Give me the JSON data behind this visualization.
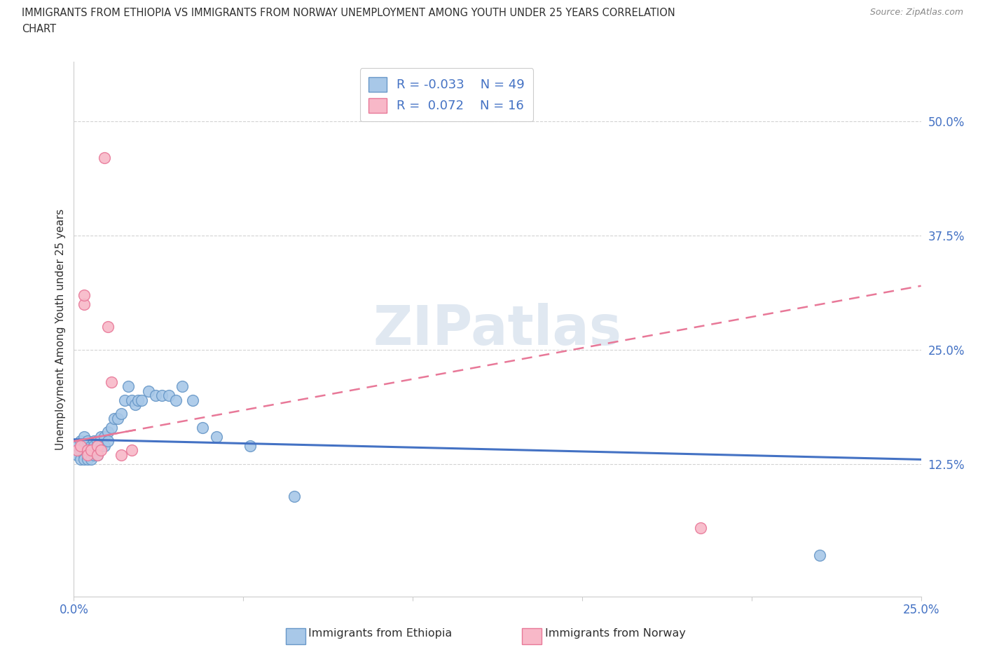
{
  "title_line1": "IMMIGRANTS FROM ETHIOPIA VS IMMIGRANTS FROM NORWAY UNEMPLOYMENT AMONG YOUTH UNDER 25 YEARS CORRELATION",
  "title_line2": "CHART",
  "source": "Source: ZipAtlas.com",
  "ylabel": "Unemployment Among Youth under 25 years",
  "xlim": [
    0.0,
    0.25
  ],
  "ylim": [
    -0.02,
    0.565
  ],
  "ytick_right": [
    0.125,
    0.25,
    0.375,
    0.5
  ],
  "ytick_right_labels": [
    "12.5%",
    "25.0%",
    "37.5%",
    "50.0%"
  ],
  "background_color": "#ffffff",
  "grid_color": "#c8c8c8",
  "watermark": "ZIPatlas",
  "watermark_color": "#ccd9e8",
  "ethiopia_color": "#a8c8e8",
  "norway_color": "#f8b8c8",
  "ethiopia_edge": "#6898c8",
  "norway_edge": "#e87898",
  "trend_ethiopia_color": "#4472c4",
  "trend_norway_color": "#e87898",
  "legend_R_ethiopia": "R = -0.033",
  "legend_N_ethiopia": "N = 49",
  "legend_R_norway": "R =  0.072",
  "legend_N_norway": "N = 16",
  "ethiopia_x": [
    0.001,
    0.001,
    0.002,
    0.002,
    0.002,
    0.003,
    0.003,
    0.003,
    0.003,
    0.004,
    0.004,
    0.004,
    0.005,
    0.005,
    0.005,
    0.006,
    0.006,
    0.006,
    0.007,
    0.007,
    0.007,
    0.008,
    0.008,
    0.009,
    0.009,
    0.01,
    0.01,
    0.011,
    0.012,
    0.013,
    0.014,
    0.015,
    0.016,
    0.017,
    0.018,
    0.019,
    0.02,
    0.022,
    0.024,
    0.026,
    0.028,
    0.03,
    0.032,
    0.035,
    0.038,
    0.042,
    0.052,
    0.065,
    0.22
  ],
  "ethiopia_y": [
    0.145,
    0.135,
    0.15,
    0.14,
    0.13,
    0.155,
    0.145,
    0.135,
    0.13,
    0.15,
    0.14,
    0.13,
    0.145,
    0.14,
    0.13,
    0.15,
    0.145,
    0.135,
    0.15,
    0.145,
    0.135,
    0.155,
    0.145,
    0.155,
    0.145,
    0.16,
    0.15,
    0.165,
    0.175,
    0.175,
    0.18,
    0.195,
    0.21,
    0.195,
    0.19,
    0.195,
    0.195,
    0.205,
    0.2,
    0.2,
    0.2,
    0.195,
    0.21,
    0.195,
    0.165,
    0.155,
    0.145,
    0.09,
    0.025
  ],
  "norway_x": [
    0.001,
    0.002,
    0.003,
    0.003,
    0.004,
    0.004,
    0.005,
    0.007,
    0.007,
    0.008,
    0.009,
    0.01,
    0.011,
    0.014,
    0.017,
    0.185
  ],
  "norway_y": [
    0.14,
    0.145,
    0.3,
    0.31,
    0.14,
    0.135,
    0.14,
    0.145,
    0.135,
    0.14,
    0.46,
    0.275,
    0.215,
    0.135,
    0.14,
    0.055
  ],
  "trend_eth_x0": 0.0,
  "trend_eth_x1": 0.25,
  "trend_eth_y0": 0.152,
  "trend_eth_y1": 0.13,
  "trend_nor_x0": 0.0,
  "trend_nor_x1": 0.25,
  "trend_nor_y0": 0.15,
  "trend_nor_y1": 0.32
}
